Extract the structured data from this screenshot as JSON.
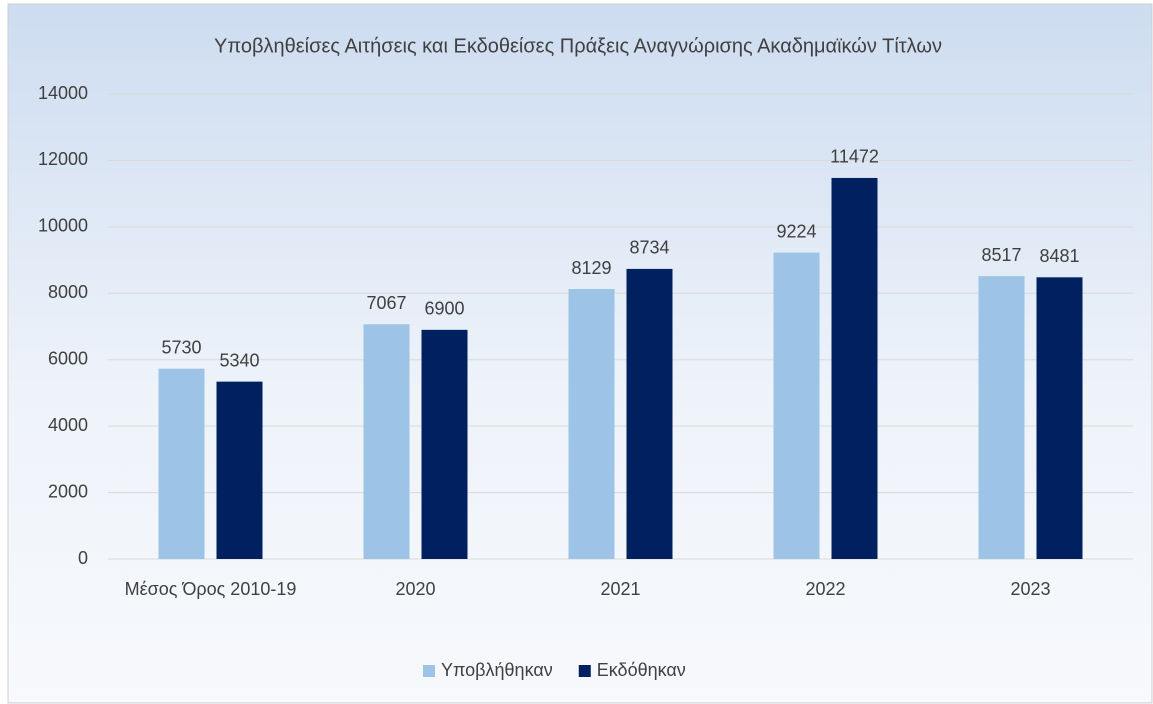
{
  "chart_data": {
    "type": "bar",
    "title": "Υποβληθείσες Αιτήσεις και Εκδοθείσες Πράξεις Αναγνώρισης Ακαδημαϊκών Τίτλων",
    "categories": [
      "Μέσος Όρος 2010-19",
      "2020",
      "2021",
      "2022",
      "2023"
    ],
    "series": [
      {
        "name": "Υποβλήθηκαν",
        "color": "#9dc3e6",
        "values": [
          5730,
          7067,
          8129,
          9224,
          8517
        ]
      },
      {
        "name": "Εκδόθηκαν",
        "color": "#002060",
        "values": [
          5340,
          6900,
          8734,
          11472,
          8481
        ]
      }
    ],
    "ylim": [
      0,
      14000
    ],
    "yticks": [
      0,
      2000,
      4000,
      6000,
      8000,
      10000,
      12000,
      14000
    ],
    "grid": true,
    "legend": "bottom"
  }
}
